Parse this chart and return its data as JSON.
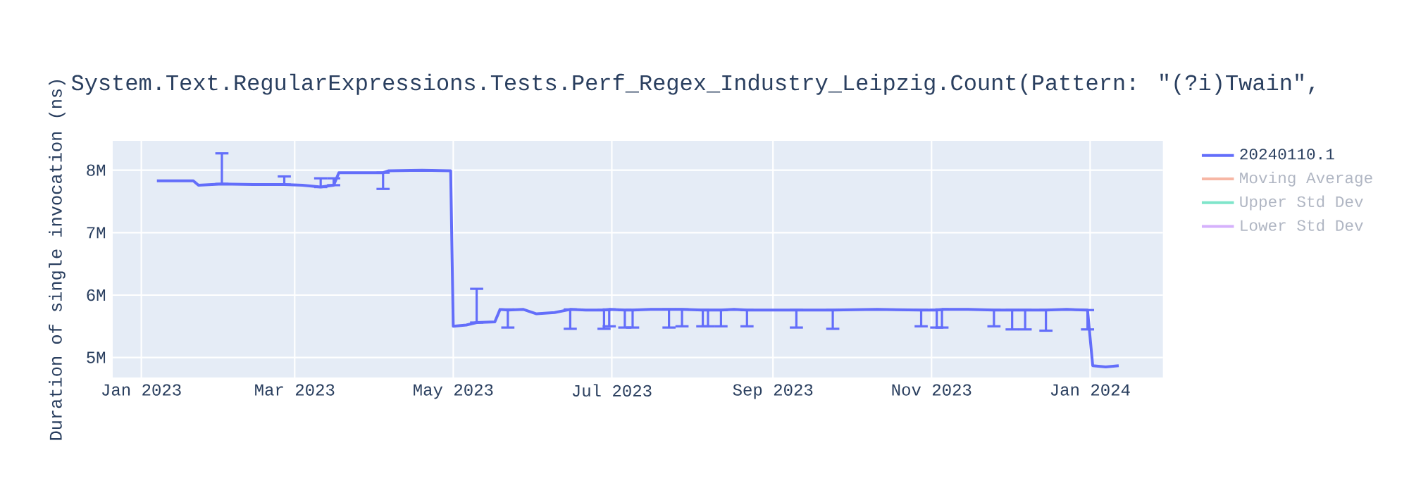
{
  "chart_data": {
    "type": "line",
    "title": "System.Text.RegularExpressions.Tests.Perf_Regex_Industry_Leipzig.Count(Pattern: \"(?i)Twain\",",
    "ylabel": "Duration of single invocation (ns)",
    "x": [
      "2023-01-07",
      "2023-01-21",
      "2023-01-23",
      "2023-02-01",
      "2023-02-13",
      "2023-02-25",
      "2023-03-04",
      "2023-03-11",
      "2023-03-16",
      "2023-03-18",
      "2023-03-26",
      "2023-04-04",
      "2023-04-06",
      "2023-04-19",
      "2023-04-30",
      "2023-05-01",
      "2023-05-06",
      "2023-05-10",
      "2023-05-17",
      "2023-05-19",
      "2023-05-22",
      "2023-05-28",
      "2023-06-02",
      "2023-06-09",
      "2023-06-15",
      "2023-06-21",
      "2023-06-28",
      "2023-06-30",
      "2023-07-06",
      "2023-07-09",
      "2023-07-16",
      "2023-07-23",
      "2023-07-28",
      "2023-08-05",
      "2023-08-07",
      "2023-08-12",
      "2023-08-17",
      "2023-08-22",
      "2023-08-31",
      "2023-09-10",
      "2023-09-16",
      "2023-09-24",
      "2023-10-11",
      "2023-10-28",
      "2023-11-03",
      "2023-11-05",
      "2023-11-15",
      "2023-11-25",
      "2023-12-02",
      "2023-12-07",
      "2023-12-15",
      "2023-12-23",
      "2023-12-31",
      "2024-01-02",
      "2024-01-07",
      "2024-01-12"
    ],
    "series": [
      {
        "name": "20240110.1",
        "color": "#636efa",
        "values": [
          7830000,
          7830000,
          7760000,
          7780000,
          7770000,
          7770000,
          7760000,
          7730000,
          7760000,
          7960000,
          7960000,
          7960000,
          7990000,
          8000000,
          7990000,
          5500000,
          5520000,
          5560000,
          5570000,
          5770000,
          5760000,
          5770000,
          5700000,
          5720000,
          5770000,
          5760000,
          5760000,
          5770000,
          5760000,
          5760000,
          5770000,
          5770000,
          5770000,
          5760000,
          5760000,
          5760000,
          5770000,
          5760000,
          5760000,
          5760000,
          5760000,
          5760000,
          5770000,
          5760000,
          5760000,
          5770000,
          5770000,
          5760000,
          5760000,
          5760000,
          5760000,
          5770000,
          5760000,
          4870000,
          4850000,
          4870000
        ],
        "errors": [
          null,
          null,
          null,
          [
            7780000,
            8270000
          ],
          null,
          [
            7770000,
            7900000
          ],
          null,
          [
            7730000,
            7870000
          ],
          [
            7760000,
            7870000
          ],
          null,
          null,
          [
            7700000,
            7960000
          ],
          null,
          null,
          null,
          null,
          null,
          [
            5560000,
            6100000
          ],
          null,
          null,
          [
            5480000,
            5770000
          ],
          null,
          null,
          null,
          [
            5460000,
            5770000
          ],
          null,
          [
            5460000,
            5760000
          ],
          [
            5500000,
            5770000
          ],
          [
            5480000,
            5760000
          ],
          [
            5480000,
            5760000
          ],
          null,
          [
            5480000,
            5770000
          ],
          [
            5500000,
            5770000
          ],
          [
            5500000,
            5760000
          ],
          [
            5500000,
            5760000
          ],
          [
            5500000,
            5760000
          ],
          null,
          [
            5500000,
            5760000
          ],
          null,
          [
            5480000,
            5760000
          ],
          null,
          [
            5460000,
            5760000
          ],
          null,
          [
            5500000,
            5760000
          ],
          [
            5480000,
            5760000
          ],
          [
            5480000,
            5770000
          ],
          null,
          [
            5500000,
            5760000
          ],
          [
            5450000,
            5760000
          ],
          [
            5450000,
            5760000
          ],
          [
            5430000,
            5760000
          ],
          null,
          [
            5450000,
            5760000
          ],
          null,
          null,
          null
        ]
      },
      {
        "name": "Moving Average",
        "color": "#f7b7a5",
        "values": [
          null,
          null,
          null,
          null,
          null,
          null,
          null,
          null,
          null,
          null,
          null,
          null,
          null,
          null,
          null,
          null,
          null,
          null,
          null,
          null,
          null,
          null,
          null,
          null,
          null,
          null,
          null,
          null,
          null,
          null,
          null,
          null,
          null,
          null,
          null,
          null,
          null,
          null,
          null,
          null,
          null,
          null,
          null,
          null,
          null,
          null,
          null,
          null,
          null,
          null,
          null,
          null,
          null,
          null,
          null,
          null
        ]
      },
      {
        "name": "Upper Std Dev",
        "color": "#7fe5ca",
        "values": [
          null,
          null,
          null,
          null,
          null,
          null,
          null,
          null,
          null,
          null,
          null,
          null,
          null,
          null,
          null,
          null,
          null,
          null,
          null,
          null,
          null,
          null,
          null,
          null,
          null,
          null,
          null,
          null,
          null,
          null,
          null,
          null,
          null,
          null,
          null,
          null,
          null,
          null,
          null,
          null,
          null,
          null,
          null,
          null,
          null,
          null,
          null,
          null,
          null,
          null,
          null,
          null,
          null,
          null,
          null,
          null
        ]
      },
      {
        "name": "Lower Std Dev",
        "color": "#d5b1fc",
        "values": [
          null,
          null,
          null,
          null,
          null,
          null,
          null,
          null,
          null,
          null,
          null,
          null,
          null,
          null,
          null,
          null,
          null,
          null,
          null,
          null,
          null,
          null,
          null,
          null,
          null,
          null,
          null,
          null,
          null,
          null,
          null,
          null,
          null,
          null,
          null,
          null,
          null,
          null,
          null,
          null,
          null,
          null,
          null,
          null,
          null,
          null,
          null,
          null,
          null,
          null,
          null,
          null,
          null,
          null,
          null,
          null
        ]
      }
    ],
    "xlim": [
      "2022-12-21",
      "2024-01-29"
    ],
    "xticks": [
      {
        "value": "2023-01-01",
        "label": "Jan 2023"
      },
      {
        "value": "2023-03-01",
        "label": "Mar 2023"
      },
      {
        "value": "2023-05-01",
        "label": "May 2023"
      },
      {
        "value": "2023-07-01",
        "label": "Jul 2023"
      },
      {
        "value": "2023-09-01",
        "label": "Sep 2023"
      },
      {
        "value": "2023-11-01",
        "label": "Nov 2023"
      },
      {
        "value": "2024-01-01",
        "label": "Jan 2024"
      }
    ],
    "ylim": [
      4680000,
      8470000
    ],
    "yticks": [
      {
        "value": 5000000,
        "label": "5M"
      },
      {
        "value": 6000000,
        "label": "6M"
      },
      {
        "value": 7000000,
        "label": "7M"
      },
      {
        "value": 8000000,
        "label": "8M"
      }
    ],
    "grid": true,
    "legend": "right",
    "marker": "none"
  }
}
